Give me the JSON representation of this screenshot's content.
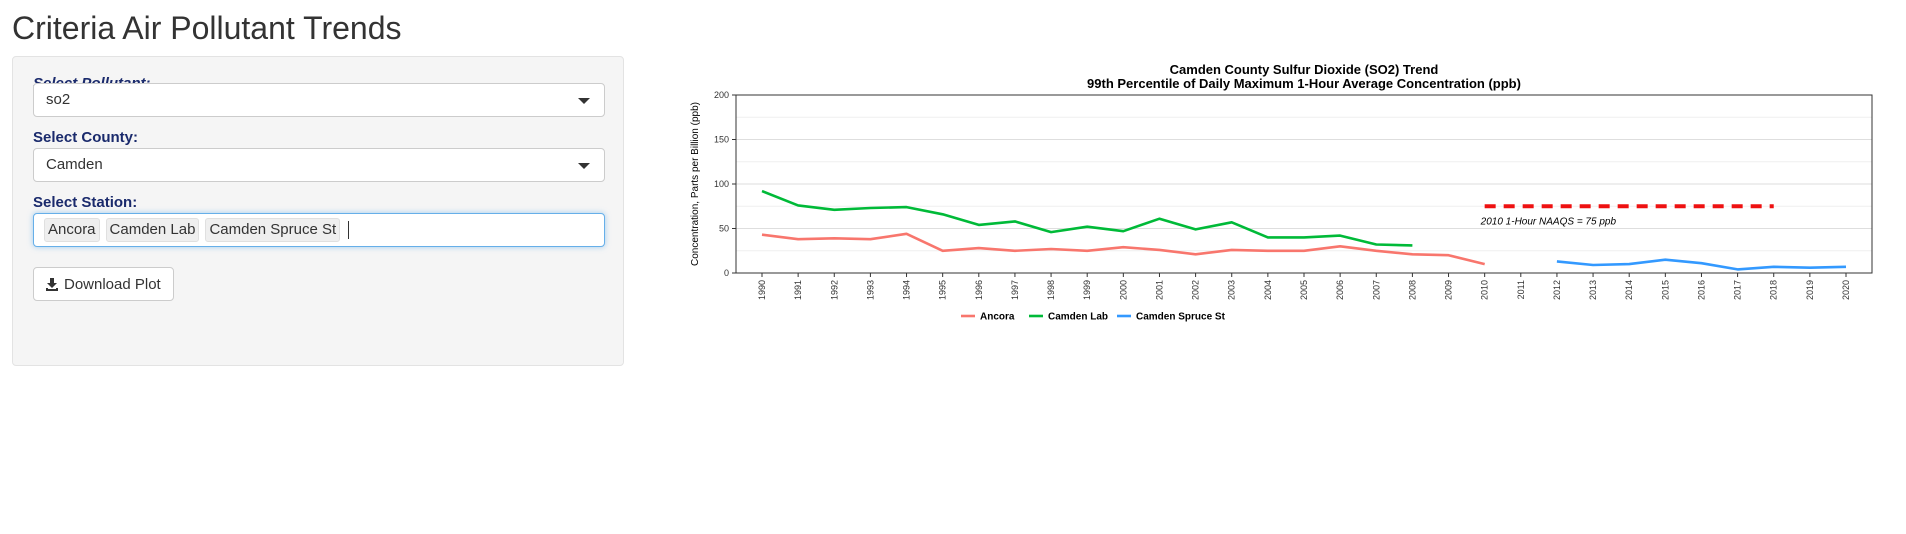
{
  "app": {
    "title": "Criteria Air Pollutant Trends"
  },
  "controls": {
    "pollutant_label": "Select Pollutant:",
    "pollutant_value": "so2",
    "county_label": "Select County:",
    "county_value": "Camden",
    "station_label": "Select Station:",
    "stations": [
      "Ancora",
      "Camden Lab",
      "Camden Spruce St"
    ],
    "download_label": "Download Plot"
  },
  "icons": {
    "download": "download-icon",
    "dropdown": "chevron-down-icon"
  },
  "chart_data": {
    "type": "line",
    "title": "Camden County Sulfur Dioxide (SO2) Trend",
    "subtitle": "99th Percentile of Daily Maximum 1-Hour Average Concentration (ppb)",
    "ylabel": "Concentration, Parts per Billion (ppb)",
    "xlabel": "",
    "ylim": [
      0,
      200
    ],
    "yticks": [
      0,
      50,
      100,
      150,
      200
    ],
    "xlim": [
      1990,
      2020
    ],
    "categories": [
      "1990",
      "1991",
      "1992",
      "1993",
      "1994",
      "1995",
      "1996",
      "1997",
      "1998",
      "1999",
      "2000",
      "2001",
      "2002",
      "2003",
      "2004",
      "2005",
      "2006",
      "2007",
      "2008",
      "2009",
      "2010",
      "2011",
      "2012",
      "2013",
      "2014",
      "2015",
      "2016",
      "2017",
      "2018",
      "2019",
      "2020"
    ],
    "grid": true,
    "legend_position": "bottom",
    "series": [
      {
        "name": "Ancora",
        "color": "#f8766d",
        "x": [
          1990,
          1991,
          1992,
          1993,
          1994,
          1995,
          1996,
          1997,
          1998,
          1999,
          2000,
          2001,
          2002,
          2003,
          2004,
          2005,
          2006,
          2007,
          2008,
          2009,
          2010
        ],
        "y": [
          43,
          38,
          39,
          38,
          44,
          25,
          28,
          25,
          27,
          25,
          29,
          26,
          21,
          26,
          25,
          25,
          30,
          25,
          21,
          20,
          10
        ]
      },
      {
        "name": "Camden Lab",
        "color": "#00ba38",
        "x": [
          1990,
          1991,
          1992,
          1993,
          1994,
          1995,
          1996,
          1997,
          1998,
          1999,
          2000,
          2001,
          2002,
          2003,
          2004,
          2005,
          2006,
          2007,
          2008
        ],
        "y": [
          92,
          76,
          71,
          73,
          74,
          66,
          54,
          58,
          46,
          52,
          47,
          61,
          49,
          57,
          40,
          40,
          42,
          32,
          31
        ]
      },
      {
        "name": "Camden Spruce St",
        "color": "#3399ff",
        "x": [
          2012,
          2013,
          2014,
          2015,
          2016,
          2017,
          2018,
          2019,
          2020
        ],
        "y": [
          13,
          9,
          10,
          15,
          11,
          4,
          7,
          6,
          7
        ]
      }
    ],
    "reference_line": {
      "label": "2010 1-Hour NAAQS = 75 ppb",
      "value": 75,
      "x_start": 2010,
      "x_end": 2018,
      "color": "#ee1111"
    }
  }
}
